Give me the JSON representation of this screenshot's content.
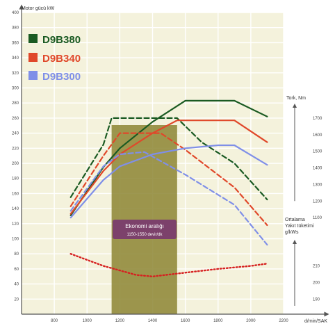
{
  "chart_data": {
    "type": "line",
    "title": "",
    "y_axis_label": "Motor gücü kW",
    "x_unit_label": "d/min/SAK",
    "torque_axis_label": "Tork, Nm",
    "fuel_axis_label_lines": [
      "Ortalama",
      "Yakıt tüketimi",
      "g/kWs"
    ],
    "x_range": [
      600,
      2200
    ],
    "y_range": [
      0,
      400
    ],
    "x_ticks": [
      800,
      1000,
      1200,
      1400,
      1600,
      1800,
      2000,
      2200
    ],
    "y_ticks": [
      20,
      40,
      60,
      80,
      100,
      120,
      140,
      160,
      180,
      200,
      220,
      240,
      260,
      280,
      300,
      320,
      340,
      360,
      380,
      400
    ],
    "torque_ticks": [
      {
        "label": "1700",
        "y": 260
      },
      {
        "label": "1600",
        "y": 238
      },
      {
        "label": "1500",
        "y": 216
      },
      {
        "label": "1400",
        "y": 194
      },
      {
        "label": "1300",
        "y": 172
      },
      {
        "label": "1200",
        "y": 150
      },
      {
        "label": "1100",
        "y": 128
      }
    ],
    "fuel_ticks": [
      {
        "label": "210",
        "y": 64
      },
      {
        "label": "200",
        "y": 42
      },
      {
        "label": "190",
        "y": 20
      }
    ],
    "economy_band": {
      "x_range": [
        1150,
        1550
      ],
      "label": "Ekonomi aralığı",
      "sublabel": "1150-1550 devir/dk"
    },
    "legend": [
      {
        "label": "D9B380",
        "color": "#1a5a22"
      },
      {
        "label": "D9B340",
        "color": "#e0482a"
      },
      {
        "label": "D9B300",
        "color": "#7f8fe8"
      }
    ],
    "series": [
      {
        "name": "D9B380",
        "kind": "power",
        "color": "#1a5a22",
        "dash": false,
        "x": [
          900,
          1100,
          1200,
          1400,
          1600,
          1800,
          1900,
          2100
        ],
        "y": [
          131,
          195,
          220,
          255,
          283,
          283,
          283,
          262
        ]
      },
      {
        "name": "D9B380",
        "kind": "torque",
        "color": "#1a5a22",
        "dash": true,
        "x": [
          900,
          1100,
          1150,
          1550,
          1700,
          1900,
          2100
        ],
        "y": [
          155,
          225,
          260,
          260,
          228,
          200,
          152
        ]
      },
      {
        "name": "D9B340",
        "kind": "power",
        "color": "#e0482a",
        "dash": false,
        "x": [
          900,
          1100,
          1200,
          1400,
          1550,
          1800,
          1900,
          2100
        ],
        "y": [
          133,
          190,
          212,
          240,
          257,
          257,
          257,
          228
        ]
      },
      {
        "name": "D9B340",
        "kind": "torque",
        "color": "#e0482a",
        "dash": true,
        "x": [
          900,
          1100,
          1200,
          1450,
          1600,
          1900,
          2100
        ],
        "y": [
          143,
          210,
          240,
          240,
          218,
          168,
          118
        ]
      },
      {
        "name": "D9B300",
        "kind": "power",
        "color": "#7f8fe8",
        "dash": false,
        "x": [
          900,
          1100,
          1200,
          1400,
          1600,
          1800,
          1900,
          2100
        ],
        "y": [
          128,
          178,
          196,
          212,
          220,
          224,
          224,
          198
        ]
      },
      {
        "name": "D9B300",
        "kind": "torque",
        "color": "#7f8fe8",
        "dash": true,
        "x": [
          900,
          1100,
          1200,
          1350,
          1600,
          1900,
          2100
        ],
        "y": [
          137,
          196,
          212,
          215,
          185,
          145,
          92
        ]
      },
      {
        "name": "",
        "kind": "fuel",
        "color": "#d62020",
        "dash": "dot",
        "x": [
          900,
          1100,
          1300,
          1400,
          1600,
          1800,
          2000,
          2100
        ],
        "y": [
          80,
          64,
          52,
          50,
          55,
          60,
          64,
          67
        ]
      }
    ]
  }
}
